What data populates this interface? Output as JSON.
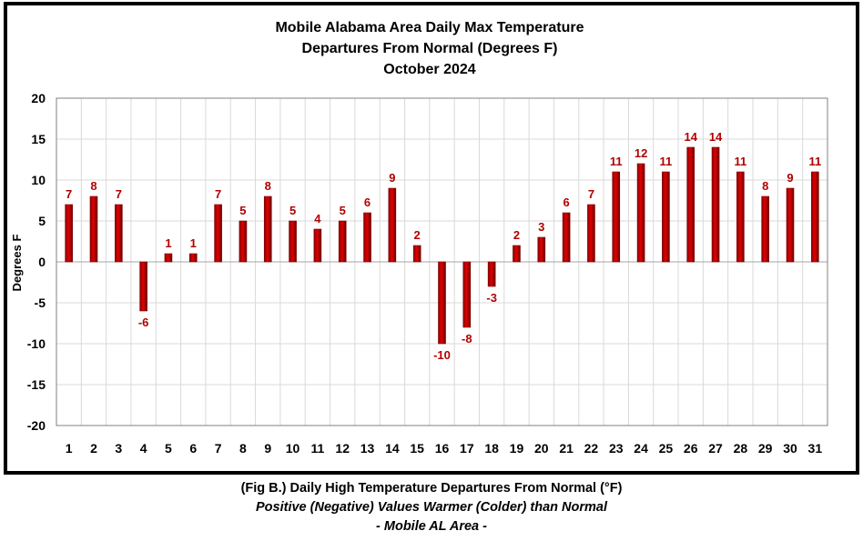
{
  "chart_data": {
    "type": "bar",
    "title": [
      "Mobile Alabama Area Daily Max Temperature",
      "Departures From Normal (Degrees F)",
      "October 2024"
    ],
    "xlabel": "",
    "ylabel": "Degrees F",
    "categories": [
      "1",
      "2",
      "3",
      "4",
      "5",
      "6",
      "7",
      "8",
      "9",
      "10",
      "11",
      "12",
      "13",
      "14",
      "15",
      "16",
      "17",
      "18",
      "19",
      "20",
      "21",
      "22",
      "23",
      "24",
      "25",
      "26",
      "27",
      "28",
      "29",
      "30",
      "31"
    ],
    "values": [
      7,
      8,
      7,
      -6,
      1,
      1,
      7,
      5,
      8,
      5,
      4,
      5,
      6,
      9,
      2,
      -10,
      -8,
      -3,
      2,
      3,
      6,
      7,
      11,
      12,
      11,
      14,
      14,
      11,
      8,
      9,
      11
    ],
    "ylim": [
      -20,
      20
    ],
    "yticks": [
      "-20",
      "-15",
      "-10",
      "-5",
      "0",
      "5",
      "10",
      "15",
      "20"
    ],
    "grid": true,
    "legend": "none",
    "colors": {
      "bar": "#cc0000",
      "bar_dark": "#7a0000",
      "label": "#b00000",
      "grid": "#d9d9d9"
    }
  },
  "caption": {
    "line1": "(Fig B.) Daily High Temperature Departures From Normal (°F)",
    "line2": "Positive (Negative) Values Warmer (Colder) than Normal",
    "line3": "- Mobile AL Area -"
  }
}
